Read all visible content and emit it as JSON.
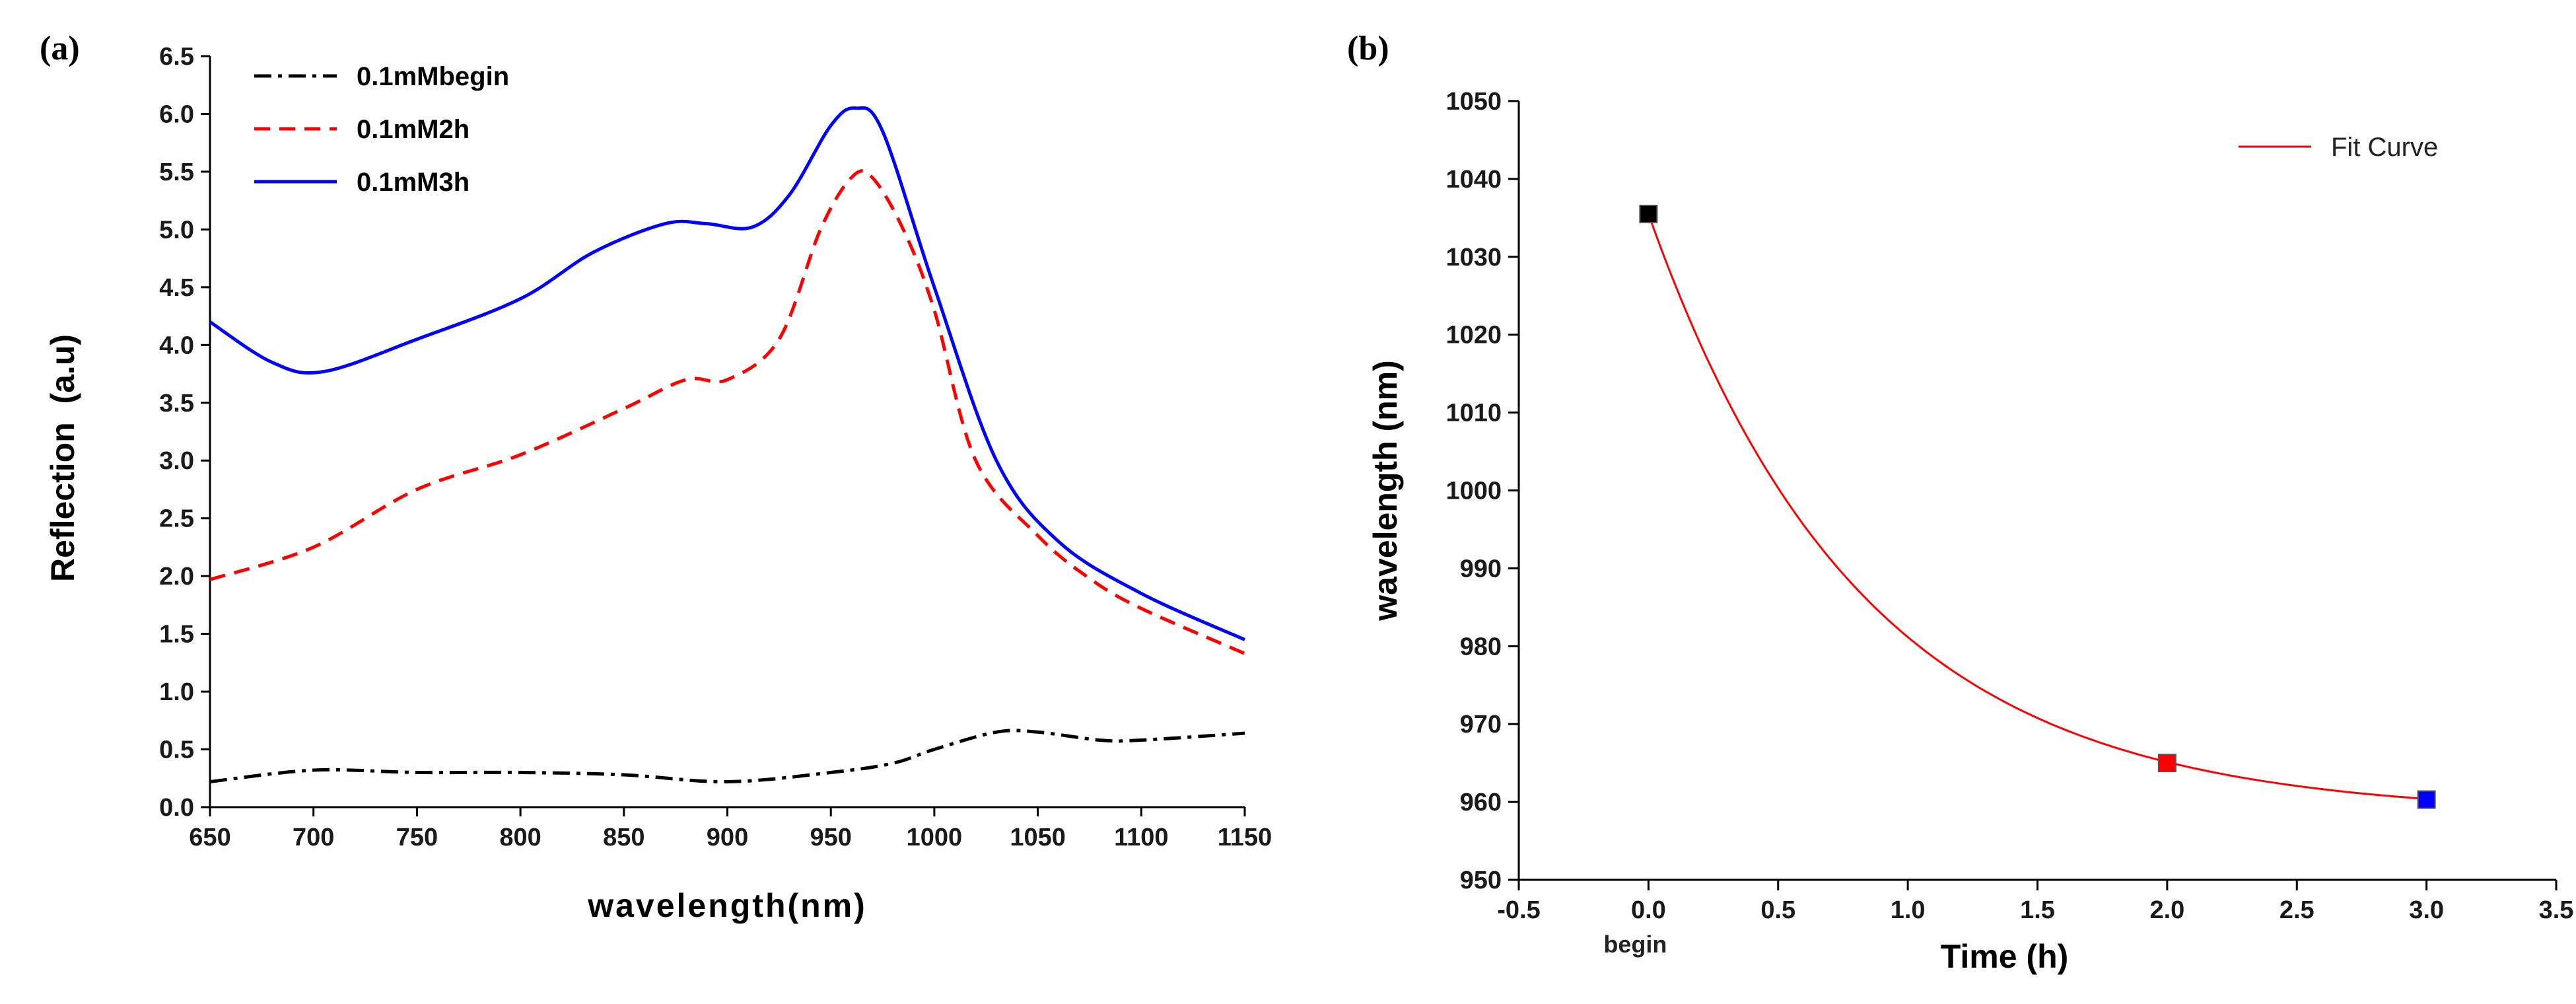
{
  "panel_a_label": "(a)",
  "panel_b_label": "(b)",
  "chart_data": [
    {
      "type": "line",
      "title": "",
      "xlabel": "wavelength(nm)",
      "ylabel": "Reflection  (a.u)",
      "xlim": [
        650,
        1150
      ],
      "ylim": [
        0.0,
        6.5
      ],
      "xticks": [
        650,
        700,
        750,
        800,
        850,
        900,
        950,
        1000,
        1050,
        1100,
        1150
      ],
      "yticks": [
        0.0,
        0.5,
        1.0,
        1.5,
        2.0,
        2.5,
        3.0,
        3.5,
        4.0,
        4.5,
        5.0,
        5.5,
        6.0,
        6.5
      ],
      "xtick_labels": [
        "650",
        "700",
        "750",
        "800",
        "850",
        "900",
        "950",
        "1000",
        "1050",
        "1100",
        "1150"
      ],
      "ytick_labels": [
        "0.0",
        "0.5",
        "1.0",
        "1.5",
        "2.0",
        "2.5",
        "3.0",
        "3.5",
        "4.0",
        "4.5",
        "5.0",
        "5.5",
        "6.0",
        "6.5"
      ],
      "grid": false,
      "legend_position": "top-left",
      "series": [
        {
          "name": "0.1mMbegin",
          "color": "#000000",
          "style": "dashdot",
          "x": [
            650,
            700,
            750,
            800,
            850,
            900,
            950,
            980,
            1000,
            1030,
            1050,
            1080,
            1100,
            1150
          ],
          "y": [
            0.22,
            0.32,
            0.3,
            0.3,
            0.28,
            0.22,
            0.3,
            0.38,
            0.5,
            0.65,
            0.65,
            0.58,
            0.58,
            0.64
          ]
        },
        {
          "name": "0.1mM2h",
          "color": "#ff0000",
          "style": "dashed",
          "x": [
            650,
            700,
            750,
            800,
            850,
            880,
            900,
            925,
            945,
            960,
            970,
            985,
            1000,
            1020,
            1050,
            1075,
            1100,
            1150
          ],
          "y": [
            1.97,
            2.25,
            2.75,
            3.05,
            3.45,
            3.7,
            3.7,
            4.05,
            5.0,
            5.45,
            5.45,
            5.0,
            4.3,
            3.0,
            2.35,
            1.98,
            1.72,
            1.33
          ]
        },
        {
          "name": "0.1mM3h",
          "color": "#0000ff",
          "style": "solid",
          "x": [
            650,
            680,
            705,
            750,
            800,
            835,
            870,
            890,
            912,
            930,
            950,
            962,
            975,
            1000,
            1030,
            1060,
            1100,
            1150
          ],
          "y": [
            4.2,
            3.85,
            3.77,
            4.05,
            4.4,
            4.8,
            5.05,
            5.05,
            5.02,
            5.3,
            5.9,
            6.05,
            5.85,
            4.5,
            3.0,
            2.3,
            1.85,
            1.45
          ]
        }
      ]
    },
    {
      "type": "scatter",
      "title": "",
      "xlabel": "Time (h)",
      "ylabel": "wavelength (nm)",
      "xlim": [
        -0.5,
        3.5
      ],
      "ylim": [
        950,
        1050
      ],
      "xticks": [
        -0.5,
        0.0,
        0.5,
        1.0,
        1.5,
        2.0,
        2.5,
        3.0,
        3.5
      ],
      "yticks": [
        950,
        960,
        970,
        980,
        990,
        1000,
        1010,
        1020,
        1030,
        1040,
        1050
      ],
      "xtick_labels": [
        "-0.5",
        "0.0",
        "0.5",
        "1.0",
        "1.5",
        "2.0",
        "2.5",
        "3.0",
        "3.5"
      ],
      "ytick_labels": [
        "950",
        "960",
        "970",
        "980",
        "990",
        "1000",
        "1010",
        "1020",
        "1030",
        "1040",
        "1050"
      ],
      "x_annotation": "begin",
      "grid": false,
      "legend_position": "top-right",
      "points": [
        {
          "x": 0.0,
          "y": 1035.5,
          "color": "#000000"
        },
        {
          "x": 2.0,
          "y": 965.0,
          "color": "#ff0000"
        },
        {
          "x": 3.0,
          "y": 960.3,
          "color": "#0000ff"
        }
      ],
      "fit_curve": {
        "name": "Fit Curve",
        "color": "#ff0000",
        "model": "exponential decay",
        "y0": 958.4,
        "A": 77.1,
        "t": 0.82,
        "x_range": [
          0.0,
          3.0
        ]
      }
    }
  ]
}
